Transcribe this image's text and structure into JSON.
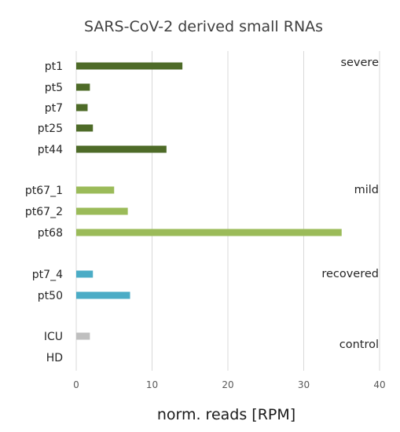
{
  "chart_data": {
    "type": "bar",
    "orientation": "horizontal",
    "title": "SARS-CoV-2 derived small RNAs",
    "xlabel": "norm. reads [RPM]",
    "ylabel": "",
    "xlim": [
      0,
      40
    ],
    "xticks": [
      0,
      10,
      20,
      30,
      40
    ],
    "grid": true,
    "categories": [
      "pt1",
      "pt5",
      "pt7",
      "pt25",
      "pt44",
      "pt67_1",
      "pt67_2",
      "pt68",
      "pt7_4",
      "pt50",
      "ICU",
      "HD"
    ],
    "values": [
      14.0,
      1.8,
      1.5,
      2.2,
      11.9,
      5.0,
      6.8,
      35.0,
      2.2,
      7.1,
      1.8,
      0
    ],
    "groups": [
      {
        "label": "severe",
        "color": "#4e6b28",
        "categories": [
          "pt1",
          "pt5",
          "pt7",
          "pt25",
          "pt44"
        ]
      },
      {
        "label": "mild",
        "color": "#9bbb59",
        "categories": [
          "pt67_1",
          "pt67_2",
          "pt68"
        ]
      },
      {
        "label": "recovered",
        "color": "#4bacc6",
        "categories": [
          "pt7_4",
          "pt50"
        ]
      },
      {
        "label": "control",
        "color": "#bfbfbf",
        "categories": [
          "ICU",
          "HD"
        ]
      }
    ]
  }
}
